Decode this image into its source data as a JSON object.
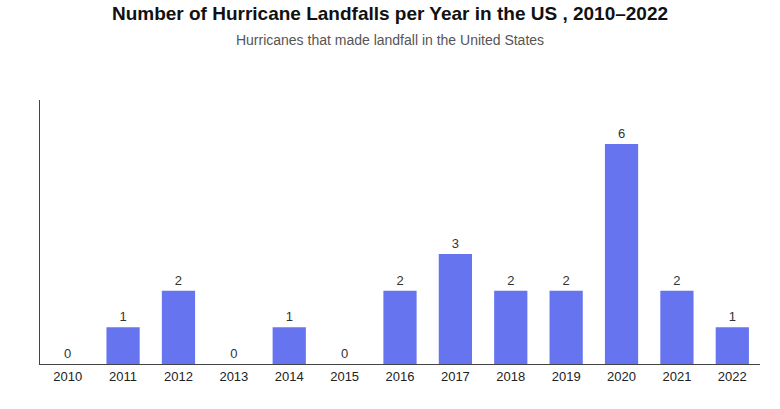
{
  "chart_data": {
    "type": "bar",
    "title": "Number of Hurricane Landfalls per Year in the US , 2010–2022",
    "subtitle": "Hurricanes that made landfall in the United States",
    "categories": [
      "2010",
      "2011",
      "2012",
      "2013",
      "2014",
      "2015",
      "2016",
      "2017",
      "2018",
      "2019",
      "2020",
      "2021",
      "2022"
    ],
    "values": [
      0,
      1,
      2,
      0,
      1,
      0,
      2,
      3,
      2,
      2,
      6,
      2,
      1
    ],
    "color": "#6674f0",
    "ylim": [
      0,
      7.2
    ],
    "data_labels": true,
    "tick_labels": "x",
    "grid": false
  }
}
